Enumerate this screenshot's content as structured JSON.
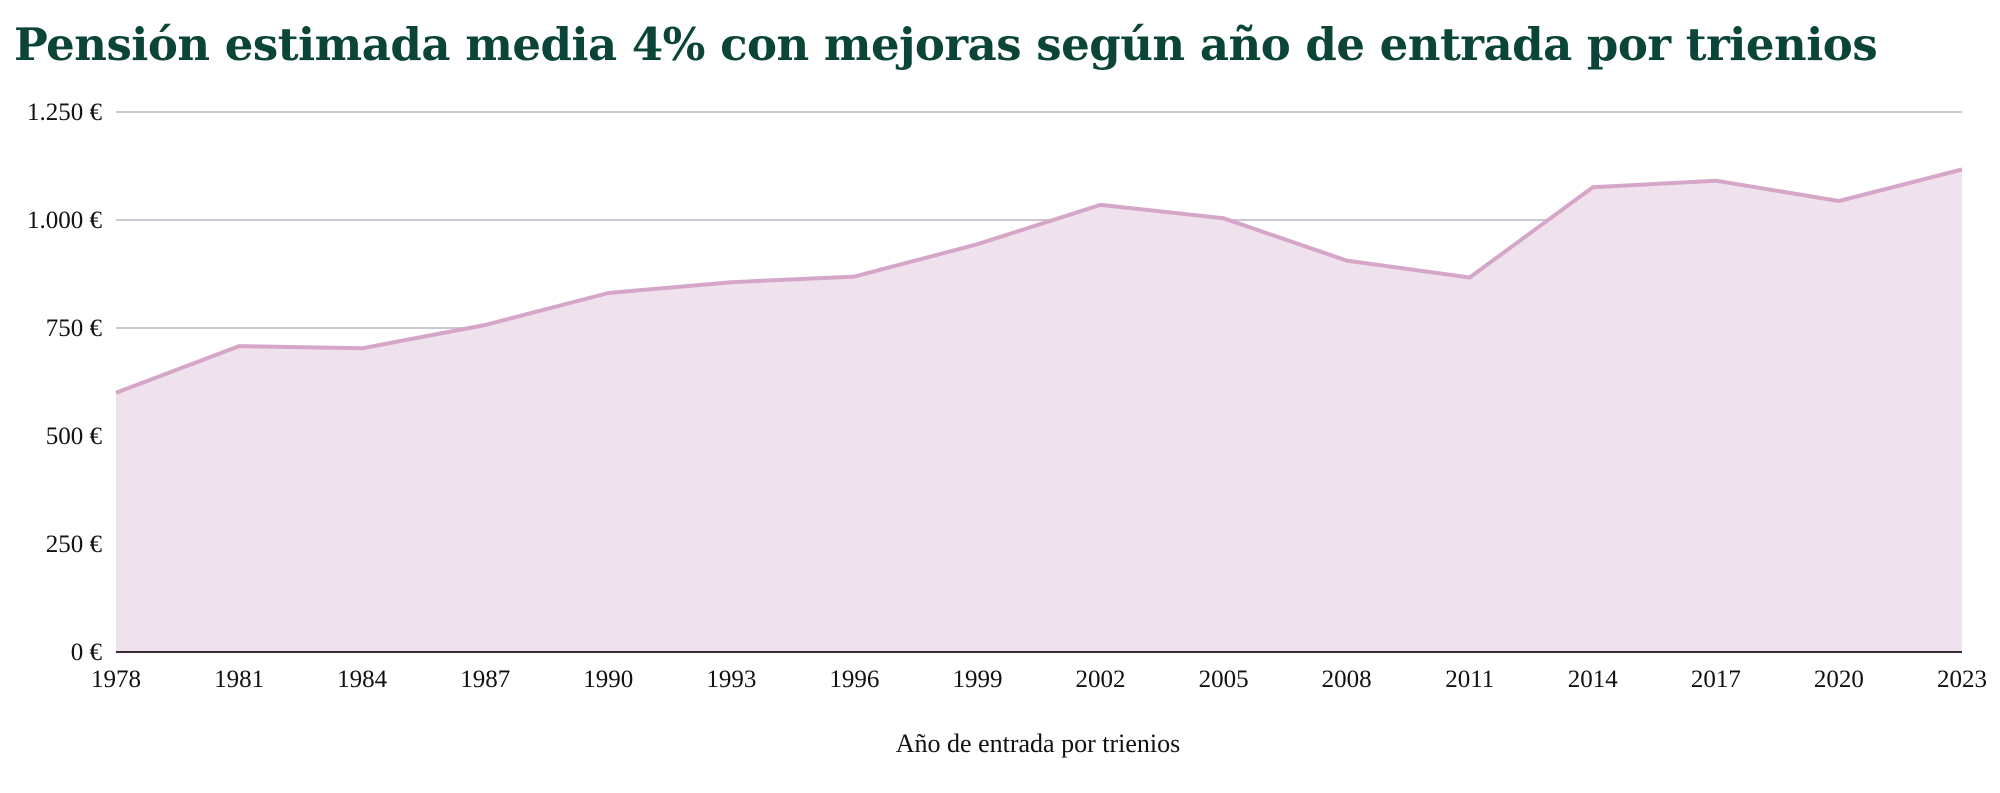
{
  "chart_data": {
    "type": "area",
    "title": "Pensión estimada media 4% con mejoras según año de entrada por trienios",
    "xlabel": "Año de entrada por trienios",
    "ylabel": "",
    "x": [
      "1978",
      "1981",
      "1984",
      "1987",
      "1990",
      "1993",
      "1996",
      "1999",
      "2002",
      "2005",
      "2008",
      "2011",
      "2014",
      "2017",
      "2020",
      "2023"
    ],
    "values": [
      600,
      708,
      703,
      757,
      831,
      856,
      869,
      944,
      1035,
      1004,
      906,
      867,
      1076,
      1091,
      1044,
      1117
    ],
    "ylim": [
      0,
      1250
    ],
    "yticks": [
      0,
      250,
      500,
      750,
      1000,
      1250
    ],
    "ytick_labels": [
      "0 €",
      "250 €",
      "500 €",
      "750 €",
      "1.000 €",
      "1.250 €"
    ],
    "grid": true,
    "colors": {
      "line": "#d5a6c8",
      "fill": "#f0e2ed",
      "grid": "#cbc6cf",
      "axis": "#3a2a3a",
      "title": "#0b4538"
    }
  }
}
